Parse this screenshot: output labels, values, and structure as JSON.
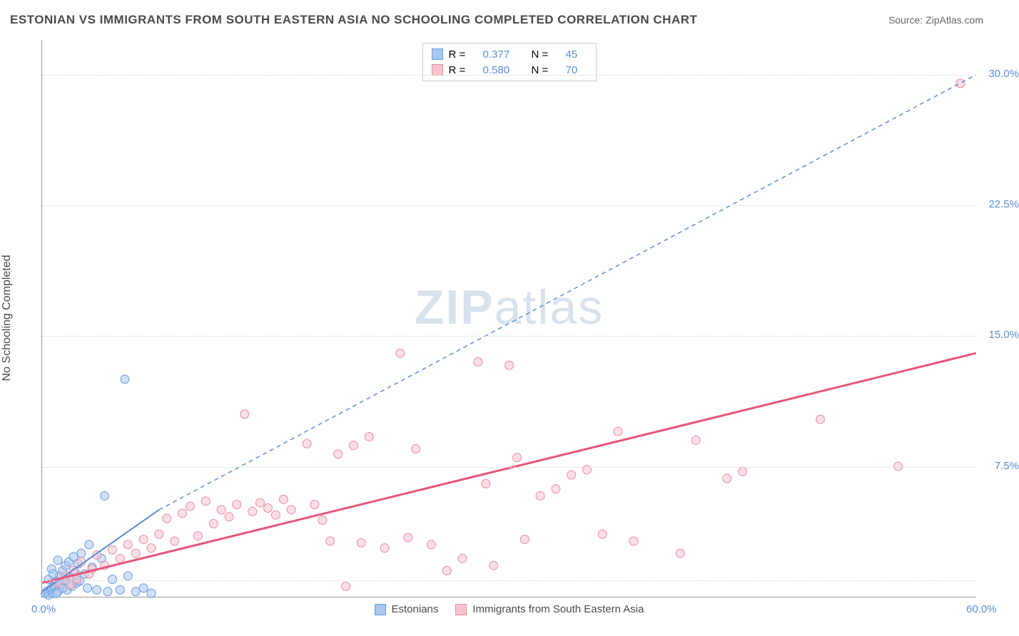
{
  "title": "ESTONIAN VS IMMIGRANTS FROM SOUTH EASTERN ASIA NO SCHOOLING COMPLETED CORRELATION CHART",
  "source": "Source: ZipAtlas.com",
  "ylabel": "No Schooling Completed",
  "watermark": {
    "part1": "ZIP",
    "part2": "atlas"
  },
  "chart": {
    "type": "scatter",
    "xlim": [
      0,
      60
    ],
    "ylim": [
      0,
      32
    ],
    "xticks": [
      {
        "v": 0,
        "label": "0.0%"
      },
      {
        "v": 60,
        "label": "60.0%"
      }
    ],
    "yticks": [
      {
        "v": 7.5,
        "label": "7.5%"
      },
      {
        "v": 15,
        "label": "15.0%"
      },
      {
        "v": 22.5,
        "label": "22.5%"
      },
      {
        "v": 30,
        "label": "30.0%"
      }
    ],
    "gridlines": [
      1,
      7.5,
      15,
      22.5,
      30
    ],
    "background_color": "#ffffff",
    "grid_color": "#dddddd",
    "axis_color": "#999999",
    "tick_color": "#5a8fd6",
    "marker_radius": 6,
    "marker_opacity": 0.55,
    "series": [
      {
        "name": "Estonians",
        "fill": "#a9c7ef",
        "stroke": "#6a9bde",
        "R": "0.377",
        "N": "45",
        "trend": {
          "x1": 0,
          "y1": 0.3,
          "x2": 7.5,
          "y2": 5.0,
          "dash": "none",
          "color": "#5a8fd6",
          "width": 2
        },
        "trend_ext": {
          "x1": 7.5,
          "y1": 5.0,
          "x2": 60,
          "y2": 30.0,
          "dash": "6,5",
          "color": "#5a8fd6",
          "width": 1.5
        },
        "points": [
          [
            0.2,
            0.2
          ],
          [
            0.3,
            0.3
          ],
          [
            0.4,
            0.1
          ],
          [
            0.5,
            0.4
          ],
          [
            0.6,
            0.5
          ],
          [
            0.7,
            0.2
          ],
          [
            0.8,
            0.6
          ],
          [
            0.9,
            0.9
          ],
          [
            1.0,
            0.3
          ],
          [
            1.1,
            1.2
          ],
          [
            1.2,
            0.7
          ],
          [
            1.3,
            1.5
          ],
          [
            1.4,
            0.9
          ],
          [
            1.5,
            1.8
          ],
          [
            1.6,
            0.4
          ],
          [
            1.7,
            2.0
          ],
          [
            1.8,
            1.1
          ],
          [
            1.9,
            0.6
          ],
          [
            2.0,
            2.3
          ],
          [
            2.1,
            1.4
          ],
          [
            2.2,
            0.8
          ],
          [
            2.3,
            1.9
          ],
          [
            2.5,
            2.5
          ],
          [
            2.7,
            1.3
          ],
          [
            2.9,
            0.5
          ],
          [
            3.0,
            3.0
          ],
          [
            3.2,
            1.7
          ],
          [
            3.5,
            0.4
          ],
          [
            3.8,
            2.2
          ],
          [
            4.0,
            5.8
          ],
          [
            4.2,
            0.3
          ],
          [
            4.5,
            1.0
          ],
          [
            5.0,
            0.4
          ],
          [
            5.3,
            12.5
          ],
          [
            5.5,
            1.2
          ],
          [
            6.0,
            0.3
          ],
          [
            6.5,
            0.5
          ],
          [
            7.0,
            0.2
          ],
          [
            0.6,
            1.6
          ],
          [
            1.0,
            2.1
          ],
          [
            0.4,
            1.0
          ],
          [
            0.9,
            0.2
          ],
          [
            1.3,
            0.5
          ],
          [
            0.7,
            1.3
          ],
          [
            2.4,
            0.9
          ]
        ]
      },
      {
        "name": "Immigrants from South Eastern Asia",
        "fill": "#f7c4cf",
        "stroke": "#e98ba0",
        "R": "0.580",
        "N": "70",
        "trend": {
          "x1": 0,
          "y1": 0.8,
          "x2": 60,
          "y2": 14.0,
          "dash": "none",
          "color": "#e7557a",
          "width": 3
        },
        "points": [
          [
            1.0,
            0.8
          ],
          [
            1.5,
            1.2
          ],
          [
            2.0,
            1.5
          ],
          [
            2.5,
            2.0
          ],
          [
            3.0,
            1.3
          ],
          [
            3.5,
            2.4
          ],
          [
            4.0,
            1.8
          ],
          [
            4.5,
            2.7
          ],
          [
            5.0,
            2.2
          ],
          [
            5.5,
            3.0
          ],
          [
            6.0,
            2.5
          ],
          [
            6.5,
            3.3
          ],
          [
            7.0,
            2.8
          ],
          [
            7.5,
            3.6
          ],
          [
            8.0,
            4.5
          ],
          [
            8.5,
            3.2
          ],
          [
            9.0,
            4.8
          ],
          [
            9.5,
            5.2
          ],
          [
            10.0,
            3.5
          ],
          [
            10.5,
            5.5
          ],
          [
            11.0,
            4.2
          ],
          [
            11.5,
            5.0
          ],
          [
            12.0,
            4.6
          ],
          [
            12.5,
            5.3
          ],
          [
            13.0,
            10.5
          ],
          [
            13.5,
            4.9
          ],
          [
            14.0,
            5.4
          ],
          [
            14.5,
            5.1
          ],
          [
            15.0,
            4.7
          ],
          [
            15.5,
            5.6
          ],
          [
            16.0,
            5.0
          ],
          [
            17.0,
            8.8
          ],
          [
            17.5,
            5.3
          ],
          [
            18.0,
            4.4
          ],
          [
            18.5,
            3.2
          ],
          [
            19.0,
            8.2
          ],
          [
            19.5,
            0.6
          ],
          [
            20.0,
            8.7
          ],
          [
            20.5,
            3.1
          ],
          [
            21.0,
            9.2
          ],
          [
            22.0,
            2.8
          ],
          [
            23.0,
            14.0
          ],
          [
            23.5,
            3.4
          ],
          [
            24.0,
            8.5
          ],
          [
            25.0,
            3.0
          ],
          [
            26.0,
            1.5
          ],
          [
            27.0,
            2.2
          ],
          [
            28.0,
            13.5
          ],
          [
            28.5,
            6.5
          ],
          [
            29.0,
            1.8
          ],
          [
            30.0,
            13.3
          ],
          [
            30.5,
            8.0
          ],
          [
            31.0,
            3.3
          ],
          [
            32.0,
            5.8
          ],
          [
            33.0,
            6.2
          ],
          [
            34.0,
            7.0
          ],
          [
            35.0,
            7.3
          ],
          [
            36.0,
            3.6
          ],
          [
            37.0,
            9.5
          ],
          [
            38.0,
            3.2
          ],
          [
            41.0,
            2.5
          ],
          [
            42.0,
            9.0
          ],
          [
            44.0,
            6.8
          ],
          [
            45.0,
            7.2
          ],
          [
            50.0,
            10.2
          ],
          [
            55.0,
            7.5
          ],
          [
            59.0,
            29.5
          ],
          [
            2.2,
            1.0
          ],
          [
            3.2,
            1.6
          ],
          [
            1.8,
            0.7
          ]
        ]
      }
    ]
  },
  "legend_top": [
    {
      "swatch_fill": "#a9c7ef",
      "swatch_stroke": "#6a9bde",
      "R": "0.377",
      "N": "45"
    },
    {
      "swatch_fill": "#f7c4cf",
      "swatch_stroke": "#e98ba0",
      "R": "0.580",
      "N": "70"
    }
  ],
  "legend_bottom": [
    {
      "swatch_fill": "#a9c7ef",
      "swatch_stroke": "#6a9bde",
      "label": "Estonians"
    },
    {
      "swatch_fill": "#f7c4cf",
      "swatch_stroke": "#e98ba0",
      "label": "Immigrants from South Eastern Asia"
    }
  ]
}
